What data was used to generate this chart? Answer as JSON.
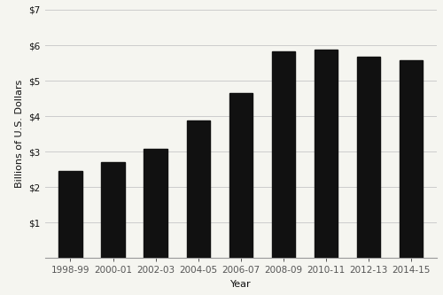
{
  "categories": [
    "1998-99",
    "2000-01",
    "2002-03",
    "2004-05",
    "2006-07",
    "2008-09",
    "2010-11",
    "2012-13",
    "2014-15"
  ],
  "values": [
    2.45,
    2.7,
    3.08,
    3.87,
    4.65,
    5.82,
    5.88,
    5.67,
    5.57
  ],
  "bar_color": "#111111",
  "xlabel": "Year",
  "ylabel": "Billions of U.S. Dollars",
  "ylim": [
    0,
    7
  ],
  "yticks": [
    1,
    2,
    3,
    4,
    5,
    6,
    7
  ],
  "ytick_labels": [
    "$1",
    "$2",
    "$3",
    "$4",
    "$5",
    "$6",
    "$7"
  ],
  "background_color": "#f5f5f0",
  "grid_color": "#cccccc",
  "xlabel_fontsize": 8,
  "ylabel_fontsize": 8,
  "tick_fontsize": 7.5,
  "bar_width": 0.55
}
